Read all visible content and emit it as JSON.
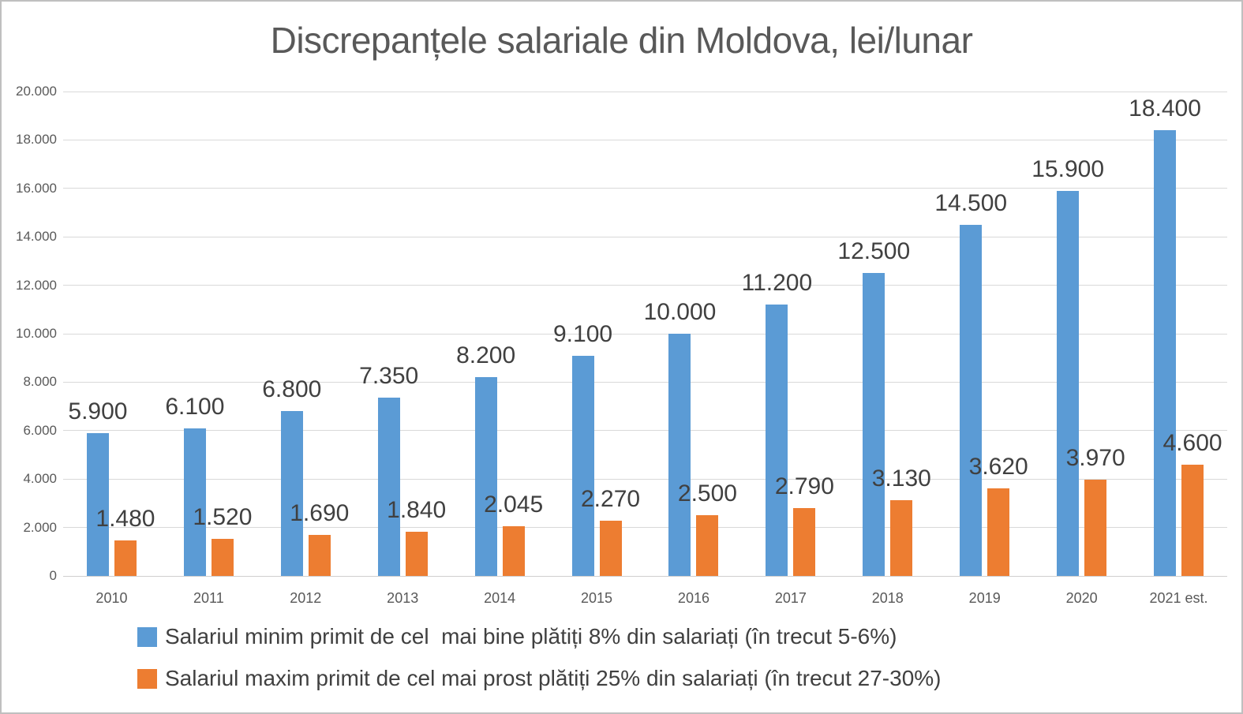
{
  "chart_data": {
    "type": "bar",
    "title": "Discrepanțele salariale din Moldova, lei/lunar",
    "categories": [
      "2010",
      "2011",
      "2012",
      "2013",
      "2014",
      "2015",
      "2016",
      "2017",
      "2018",
      "2019",
      "2020",
      "2021 est."
    ],
    "series": [
      {
        "name": "Salariul minim primit de cel  mai bine plătiți 8% din salariați (în trecut 5-6%)",
        "color": "#5b9bd5",
        "values": [
          5900,
          6100,
          6800,
          7350,
          8200,
          9100,
          10000,
          11200,
          12500,
          14500,
          15900,
          18400
        ],
        "labels": [
          "5.900",
          "6.100",
          "6.800",
          "7.350",
          "8.200",
          "9.100",
          "10.000",
          "11.200",
          "12.500",
          "14.500",
          "15.900",
          "18.400"
        ]
      },
      {
        "name": "Salariul maxim primit de cel mai prost plătiți 25% din salariați (în trecut 27-30%)",
        "color": "#ed7d31",
        "values": [
          1480,
          1520,
          1690,
          1840,
          2045,
          2270,
          2500,
          2790,
          3130,
          3620,
          3970,
          4600
        ],
        "labels": [
          "1.480",
          "1.520",
          "1.690",
          "1.840",
          "2.045",
          "2.270",
          "2.500",
          "2.790",
          "3.130",
          "3.620",
          "3.970",
          "4.600"
        ]
      }
    ],
    "ylim": [
      0,
      20000
    ],
    "ytick_step": 2000,
    "ytick_labels": [
      "0",
      "2.000",
      "4.000",
      "6.000",
      "8.000",
      "10.000",
      "12.000",
      "14.000",
      "16.000",
      "18.000",
      "20.000"
    ],
    "grid": true,
    "legend_position": "bottom-left",
    "xlabel": "",
    "ylabel": ""
  },
  "style": {
    "gridline_color": "#d9d9d9",
    "title_color": "#595959",
    "tick_color": "#595959",
    "data_label_color": "#404040",
    "frame_border_color": "#bfbfbf",
    "background": "#ffffff"
  }
}
